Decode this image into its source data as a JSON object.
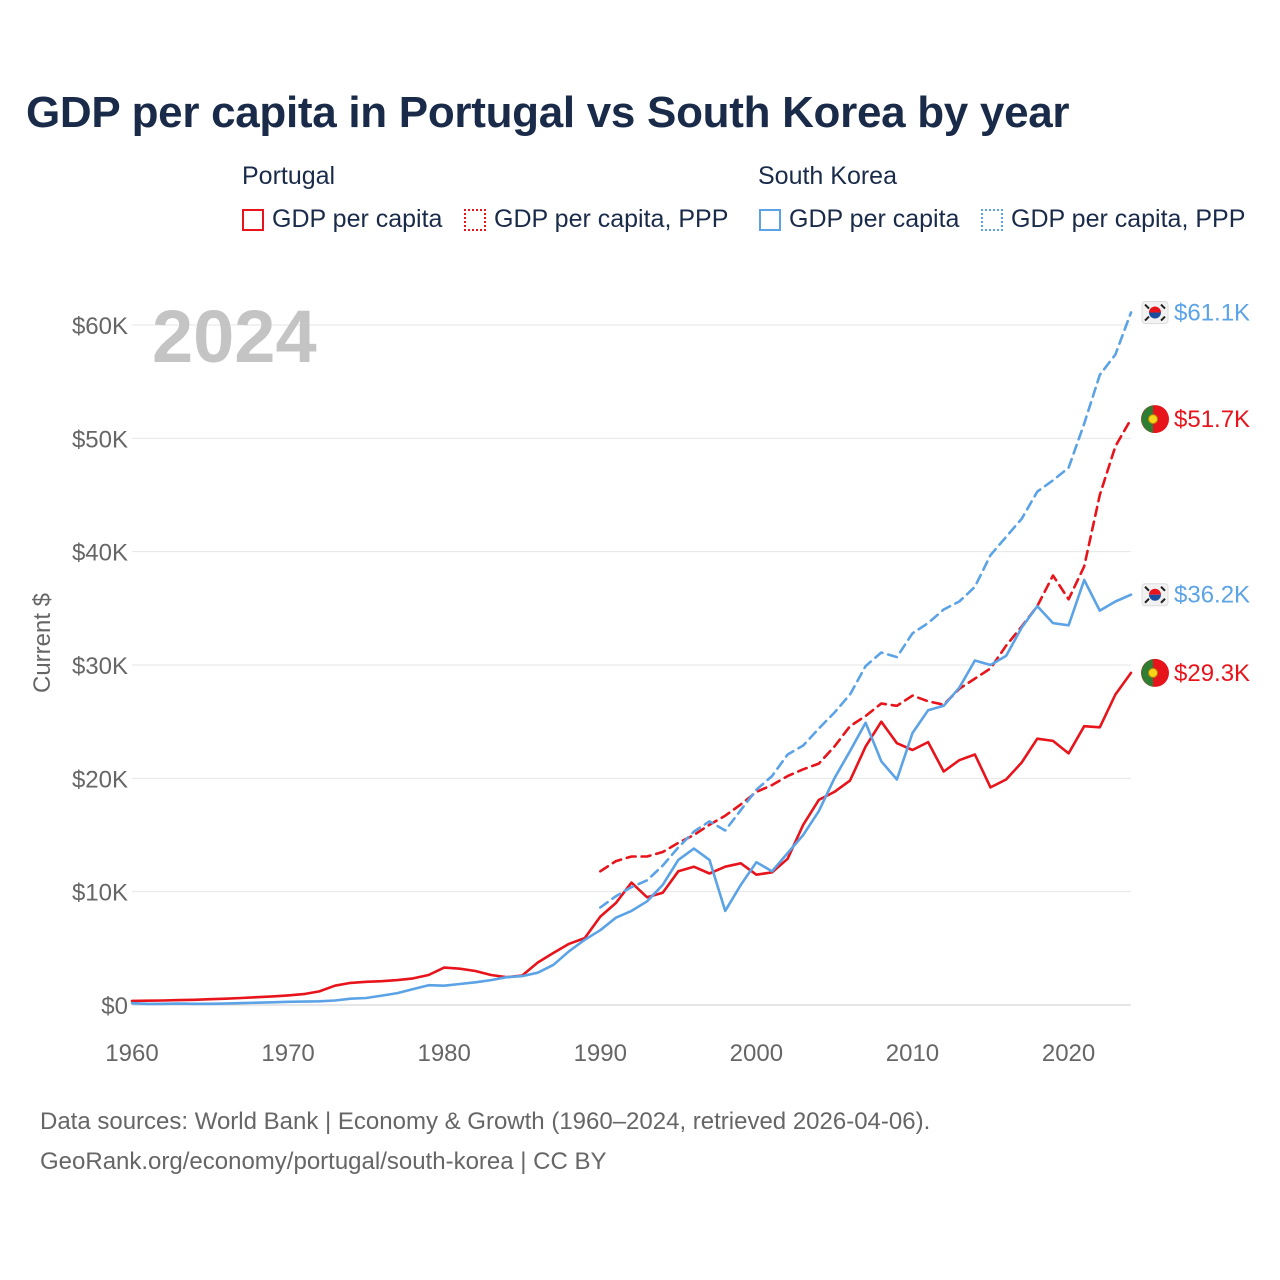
{
  "title": "GDP per capita in Portugal vs South Korea by year",
  "legend": {
    "portugal": {
      "label": "Portugal",
      "gdp": "GDP per capita",
      "ppp": "GDP per capita, PPP"
    },
    "south_korea": {
      "label": "South Korea",
      "gdp": "GDP per capita",
      "ppp": "GDP per capita, PPP"
    }
  },
  "year_overlay": "2024",
  "colors": {
    "portugal": "#e8141c",
    "south_korea": "#5ba3e6",
    "grid": "#e6e6e6",
    "axis": "#666666",
    "title": "#1a2b4a",
    "year": "#c4c4c4"
  },
  "end_labels": {
    "kr_ppp": "$61.1K",
    "pt_ppp": "$51.7K",
    "kr_gdp": "$36.2K",
    "pt_gdp": "$29.3K"
  },
  "footer": {
    "line1": "Data sources: World Bank | Economy & Growth (1960–2024, retrieved 2026-04-06).",
    "line2": "GeoRank.org/economy/portugal/south-korea | CC BY"
  },
  "chart_data": {
    "type": "line",
    "title": "GDP per capita in Portugal vs South Korea by year",
    "xlabel": "",
    "ylabel": "Current $",
    "xlim": [
      1960,
      2024
    ],
    "ylim": [
      0,
      60000
    ],
    "x_ticks": [
      1960,
      1970,
      1980,
      1990,
      2000,
      2010,
      2020
    ],
    "y_ticks": [
      0,
      10000,
      20000,
      30000,
      40000,
      50000,
      60000
    ],
    "y_tick_labels": [
      "$0",
      "$10K",
      "$20K",
      "$30K",
      "$40K",
      "$50K",
      "$60K"
    ],
    "series": [
      {
        "name": "Portugal GDP per capita",
        "x_start": 1960,
        "values": [
          360,
          380,
          400,
          430,
          460,
          510,
          560,
          620,
          690,
          760,
          850,
          960,
          1200,
          1700,
          1950,
          2050,
          2100,
          2200,
          2350,
          2650,
          3300,
          3200,
          3000,
          2650,
          2450,
          2600,
          3750,
          4600,
          5400,
          5900,
          7800,
          9000,
          10800,
          9500,
          9900,
          11800,
          12200,
          11600,
          12200,
          12500,
          11500,
          11700,
          12900,
          15900,
          18100,
          18800,
          19800,
          22800,
          25000,
          23100,
          22500,
          23200,
          20600,
          21600,
          22100,
          19200,
          19900,
          21400,
          23500,
          23300,
          22200,
          24600,
          24500,
          27400,
          29300
        ],
        "style": "solid"
      },
      {
        "name": "Portugal GDP per capita, PPP",
        "x_start": 1990,
        "values": [
          11800,
          12700,
          13100,
          13100,
          13500,
          14300,
          15000,
          15900,
          16700,
          17700,
          18800,
          19400,
          20200,
          20800,
          21300,
          22800,
          24600,
          25500,
          26600,
          26400,
          27300,
          26800,
          26500,
          27900,
          28800,
          29700,
          31700,
          33400,
          35200,
          37900,
          35800,
          38700,
          45000,
          49300,
          51700
        ],
        "style": "dashed"
      },
      {
        "name": "South Korea GDP per capita",
        "x_start": 1960,
        "values": [
          160,
          95,
          110,
          120,
          105,
          110,
          135,
          165,
          200,
          240,
          280,
          300,
          330,
          400,
          560,
          620,
          830,
          1050,
          1400,
          1750,
          1700,
          1850,
          2000,
          2200,
          2450,
          2550,
          2850,
          3550,
          4750,
          5750,
          6600,
          7700,
          8300,
          9150,
          10600,
          12800,
          13800,
          12800,
          8300,
          10600,
          12600,
          11800,
          13400,
          15000,
          17100,
          20000,
          22400,
          24900,
          21500,
          19900,
          24000,
          26000,
          26400,
          28000,
          30400,
          30000,
          30800,
          33300,
          35200,
          33700,
          33500,
          37500,
          34800,
          35600,
          36200
        ],
        "style": "solid"
      },
      {
        "name": "South Korea GDP per capita, PPP",
        "x_start": 1990,
        "values": [
          8600,
          9600,
          10400,
          11000,
          12300,
          13900,
          15300,
          16200,
          15400,
          17200,
          19000,
          20200,
          22100,
          22900,
          24400,
          25800,
          27400,
          29900,
          31100,
          30700,
          32800,
          33700,
          34900,
          35600,
          36900,
          39700,
          41300,
          42900,
          45300,
          46300,
          47400,
          51300,
          55600,
          57400,
          61100
        ],
        "style": "dashed"
      }
    ],
    "legend_position": "top"
  }
}
